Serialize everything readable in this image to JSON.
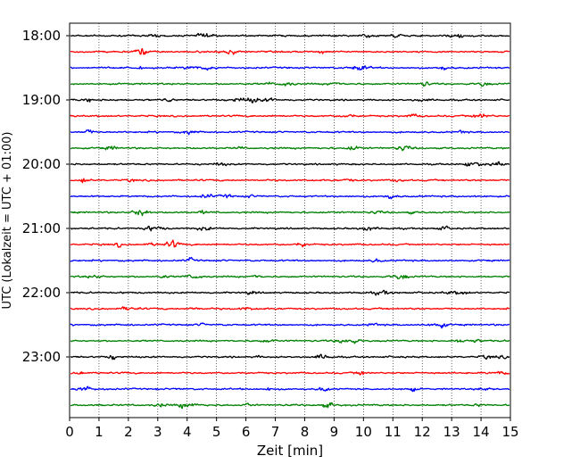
{
  "chart_data": {
    "type": "line",
    "title": "",
    "xlabel": "Zeit  [min]",
    "ylabel": "UTC (Lokalzeit = UTC + 01:00)",
    "xlim": [
      0,
      15
    ],
    "x_ticks": [
      0,
      1,
      2,
      3,
      4,
      5,
      6,
      7,
      8,
      9,
      10,
      11,
      12,
      13,
      14,
      15
    ],
    "x_grid": "dotted vertical lines at each minute",
    "y_ticks": [
      "18:00",
      "19:00",
      "20:00",
      "21:00",
      "22:00",
      "23:00"
    ],
    "trace_minutes": 15,
    "trace_count": 24,
    "trace_start": "18:00",
    "trace_colors": [
      "#000000",
      "#ff0000",
      "#0000ff",
      "#008000"
    ],
    "y_tick_every_n_traces": 4,
    "legend": "none"
  }
}
